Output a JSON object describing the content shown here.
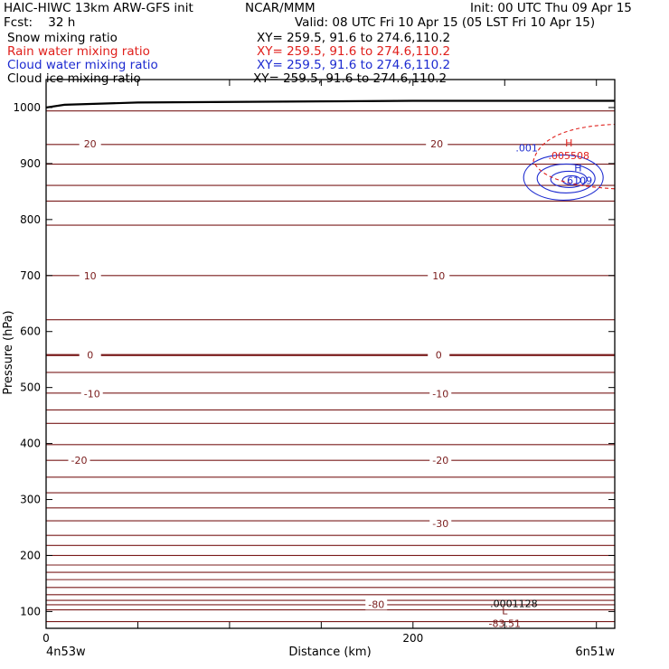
{
  "header": {
    "model": "HAIC-HIWC 13km ARW-GFS init",
    "org": "NCAR/MMM",
    "init": "Init: 00 UTC Thu 09 Apr 15",
    "fcst": "Fcst:    32 h",
    "valid": "Valid: 08 UTC Fri 10 Apr 15 (05 LST Fri 10 Apr 15)",
    "fields": [
      {
        "name": "Snow mixing ratio",
        "xy": "XY= 259.5, 91.6 to 274.6,110.2",
        "color": "#000000"
      },
      {
        "name": "Rain water mixing ratio",
        "xy": "XY= 259.5, 91.6 to 274.6,110.2",
        "color": "#e0201c"
      },
      {
        "name": "Cloud water mixing ratio",
        "xy": "XY= 259.5, 91.6 to 274.6,110.2",
        "color": "#1d2bd0"
      },
      {
        "name": "Cloud ice mixing ratio",
        "xy": "XY= 259.5, 91.6 to 274.6,110.2",
        "color": "#000000"
      }
    ]
  },
  "chart_data": {
    "type": "line",
    "xlabel": "Distance (km)",
    "ylabel": "Pressure (hPa)",
    "xlim": [
      0,
      310
    ],
    "ylim": [
      1050,
      70
    ],
    "x_ticks": [
      0,
      200
    ],
    "y_ticks": [
      100,
      200,
      300,
      400,
      500,
      600,
      700,
      800,
      900,
      1000
    ],
    "left_endpoint_label": "4n53w",
    "right_endpoint_label": "6n51w",
    "colors": {
      "temperature_contours": "#7a1c1c",
      "rain_water": "#e0201c",
      "cloud_water": "#1d2bd0",
      "terrain": "#000000"
    },
    "temperature_contours_hPa": [
      82,
      103,
      112,
      120,
      130,
      143,
      157,
      170,
      183,
      200,
      218,
      236,
      262,
      285,
      312,
      340,
      370,
      398,
      436,
      460,
      490,
      527,
      558,
      621,
      700,
      790,
      833,
      861,
      899,
      934,
      994
    ],
    "contour_labels": [
      {
        "text": "-80",
        "x": 180,
        "p": 113
      },
      {
        "text": "-30",
        "x": 215,
        "p": 257
      },
      {
        "text": "-20",
        "x": 18,
        "p": 370
      },
      {
        "text": "-20",
        "x": 215,
        "p": 370
      },
      {
        "text": "-10",
        "x": 25,
        "p": 489
      },
      {
        "text": "-10",
        "x": 215,
        "p": 489
      },
      {
        "text": "0",
        "x": 24,
        "p": 558
      },
      {
        "text": "0",
        "x": 214,
        "p": 558
      },
      {
        "text": "10",
        "x": 24,
        "p": 700
      },
      {
        "text": "10",
        "x": 214,
        "p": 700
      },
      {
        "text": "20",
        "x": 24,
        "p": 935
      },
      {
        "text": "20",
        "x": 213,
        "p": 935
      }
    ],
    "extrema": [
      {
        "kind": "L",
        "value": "-83.51",
        "x": 250,
        "p": 82,
        "color": "#7a1c1c"
      },
      {
        "kind": "",
        "value": ".0001128",
        "x": 255,
        "p": 118,
        "color": "#000000"
      },
      {
        "kind": "H",
        "value": ".6109",
        "x": 290,
        "p": 873,
        "color": "#1d2bd0"
      },
      {
        "kind": "H",
        "value": ".005508",
        "x": 285,
        "p": 918,
        "color": "#e0201c"
      }
    ],
    "cloud_water_labels": [
      {
        "text": ".001",
        "x": 262,
        "p": 928
      }
    ],
    "terrain_surface": {
      "x": [
        0,
        10,
        50,
        100,
        150,
        200,
        250,
        310
      ],
      "p": [
        1000,
        1005,
        1009,
        1010,
        1011,
        1012,
        1012,
        1012
      ]
    }
  }
}
